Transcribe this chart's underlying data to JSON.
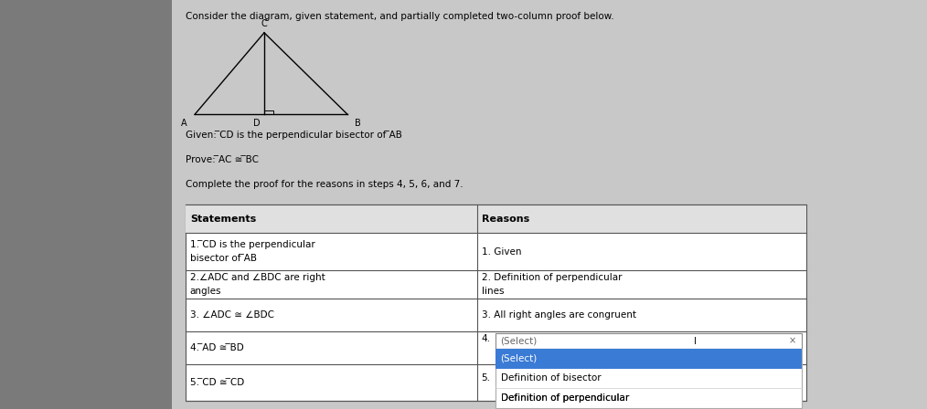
{
  "bg_color": "#7a7a7a",
  "panel_color": "#c8c8c8",
  "title": "Consider the diagram, given statement, and partially completed two-column proof below.",
  "header": [
    "Statements",
    "Reasons"
  ],
  "rows": [
    [
      "1. ̅CD is the perpendicular\nbisector of ̅AB",
      "1. Given"
    ],
    [
      "2.∠ADC and ∠BDC are right\nangles",
      "2. Definition of perpendicular\nlines"
    ],
    [
      "3. ∠ADC ≅ ∠BDC",
      "3. All right angles are congruent"
    ],
    [
      "4. ̅AD ≅ ̅BD",
      ""
    ],
    [
      "5. ̅CD ≅ ̅CD",
      ""
    ]
  ],
  "dropdown_items": [
    "(Select)",
    "Definition of bisector",
    "Definition of perpendicular"
  ],
  "font_size_title": 7.5,
  "font_size_table": 7.5
}
